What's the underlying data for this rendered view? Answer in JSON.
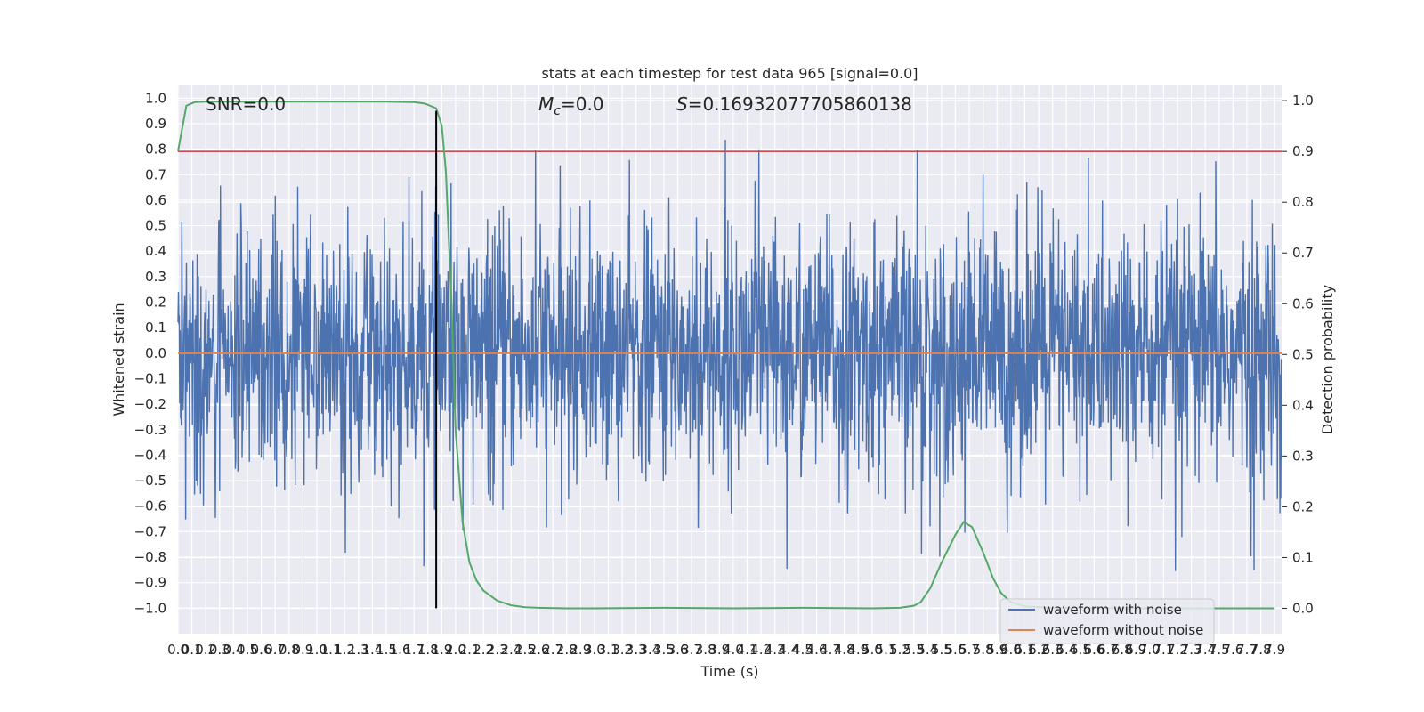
{
  "chart_data": {
    "type": "line",
    "title": "stats at each timestep for test data 965 [signal=0.0]",
    "xlabel": "Time (s)",
    "ylabel": "Whitened strain",
    "ylabel_right": "Detection probability",
    "xlim": [
      0.0,
      7.95
    ],
    "ylim": [
      -1.1,
      1.05
    ],
    "ylim_right": [
      -0.05,
      1.03
    ],
    "grid": true,
    "legend_position": "lower right",
    "xticks": [
      "0.0",
      "0.1",
      "0.2",
      "0.3",
      "0.4",
      "0.5",
      "0.6",
      "0.7",
      "0.8",
      "0.9",
      "1.0",
      "1.1",
      "1.2",
      "1.3",
      "1.4",
      "1.5",
      "1.6",
      "1.7",
      "1.8",
      "1.9",
      "2.0",
      "2.1",
      "2.2",
      "2.3",
      "2.4",
      "2.5",
      "2.6",
      "2.7",
      "2.8",
      "2.9",
      "3.0",
      "3.1",
      "3.2",
      "3.3",
      "3.4",
      "3.5",
      "3.6",
      "3.7",
      "3.8",
      "3.9",
      "4.0",
      "4.1",
      "4.2",
      "4.3",
      "4.4",
      "4.5",
      "4.6",
      "4.7",
      "4.8",
      "4.9",
      "5.0",
      "5.1",
      "5.2",
      "5.3",
      "5.4",
      "5.5",
      "5.6",
      "5.7",
      "5.8",
      "5.9",
      "6.0",
      "6.1",
      "6.2",
      "6.3",
      "6.4",
      "6.5",
      "6.6",
      "6.7",
      "6.8",
      "6.9",
      "7.0",
      "7.1",
      "7.2",
      "7.3",
      "7.4",
      "7.5",
      "7.6",
      "7.7",
      "7.8",
      "7.9"
    ],
    "yticks_left": [
      "1.0",
      "0.9",
      "0.8",
      "0.7",
      "0.6",
      "0.5",
      "0.4",
      "0.3",
      "0.2",
      "0.1",
      "0.0",
      "−0.1",
      "−0.2",
      "−0.3",
      "−0.4",
      "−0.5",
      "−0.6",
      "−0.7",
      "−0.8",
      "−0.9",
      "−1.0"
    ],
    "yticks_right": [
      "1.0",
      "0.9",
      "0.8",
      "0.7",
      "0.6",
      "0.5",
      "0.4",
      "0.3",
      "0.2",
      "0.1",
      "0.0"
    ],
    "annotations": {
      "snr": "SNR=0.0",
      "mc": "=0.0",
      "mc_symbol": "M",
      "mc_sub": "c",
      "s": "=0.16932077705860138",
      "s_symbol": "S"
    },
    "series": [
      {
        "name": "waveform with noise",
        "color": "#4c72b0",
        "axis": "left",
        "style": "dense noise, roughly ±0.3 typical amplitude with peaks up to about ±0.95"
      },
      {
        "name": "waveform without noise",
        "color": "#dd8452",
        "axis": "left",
        "values_constant": 0.0
      },
      {
        "name": "",
        "color": "#55a868",
        "axis": "right",
        "x": [
          0.0,
          0.06,
          0.12,
          0.2,
          0.5,
          1.0,
          1.5,
          1.7,
          1.78,
          1.86,
          1.9,
          1.93,
          1.97,
          2.0,
          2.05,
          2.1,
          2.15,
          2.2,
          2.3,
          2.4,
          2.5,
          2.6,
          2.8,
          3.0,
          3.5,
          4.0,
          4.5,
          5.0,
          5.2,
          5.3,
          5.35,
          5.42,
          5.5,
          5.6,
          5.66,
          5.72,
          5.8,
          5.87,
          5.93,
          6.0,
          6.1,
          6.3,
          7.0,
          7.9
        ],
        "values": [
          0.9,
          0.99,
          0.997,
          0.998,
          0.998,
          0.998,
          0.998,
          0.997,
          0.994,
          0.985,
          0.95,
          0.86,
          0.6,
          0.35,
          0.17,
          0.09,
          0.055,
          0.035,
          0.015,
          0.006,
          0.002,
          0.001,
          0.0,
          0.0,
          0.001,
          0.0,
          0.001,
          0.0,
          0.001,
          0.005,
          0.012,
          0.04,
          0.09,
          0.145,
          0.17,
          0.16,
          0.11,
          0.06,
          0.03,
          0.012,
          0.004,
          0.001,
          0.0,
          0.0
        ]
      }
    ],
    "hlines": [
      {
        "axis": "right",
        "y": 0.9,
        "color": "#c44e52"
      }
    ],
    "vlines": [
      {
        "x": 1.86,
        "y_from": -1.0,
        "y_to": 0.95,
        "color": "#000000"
      }
    ]
  }
}
